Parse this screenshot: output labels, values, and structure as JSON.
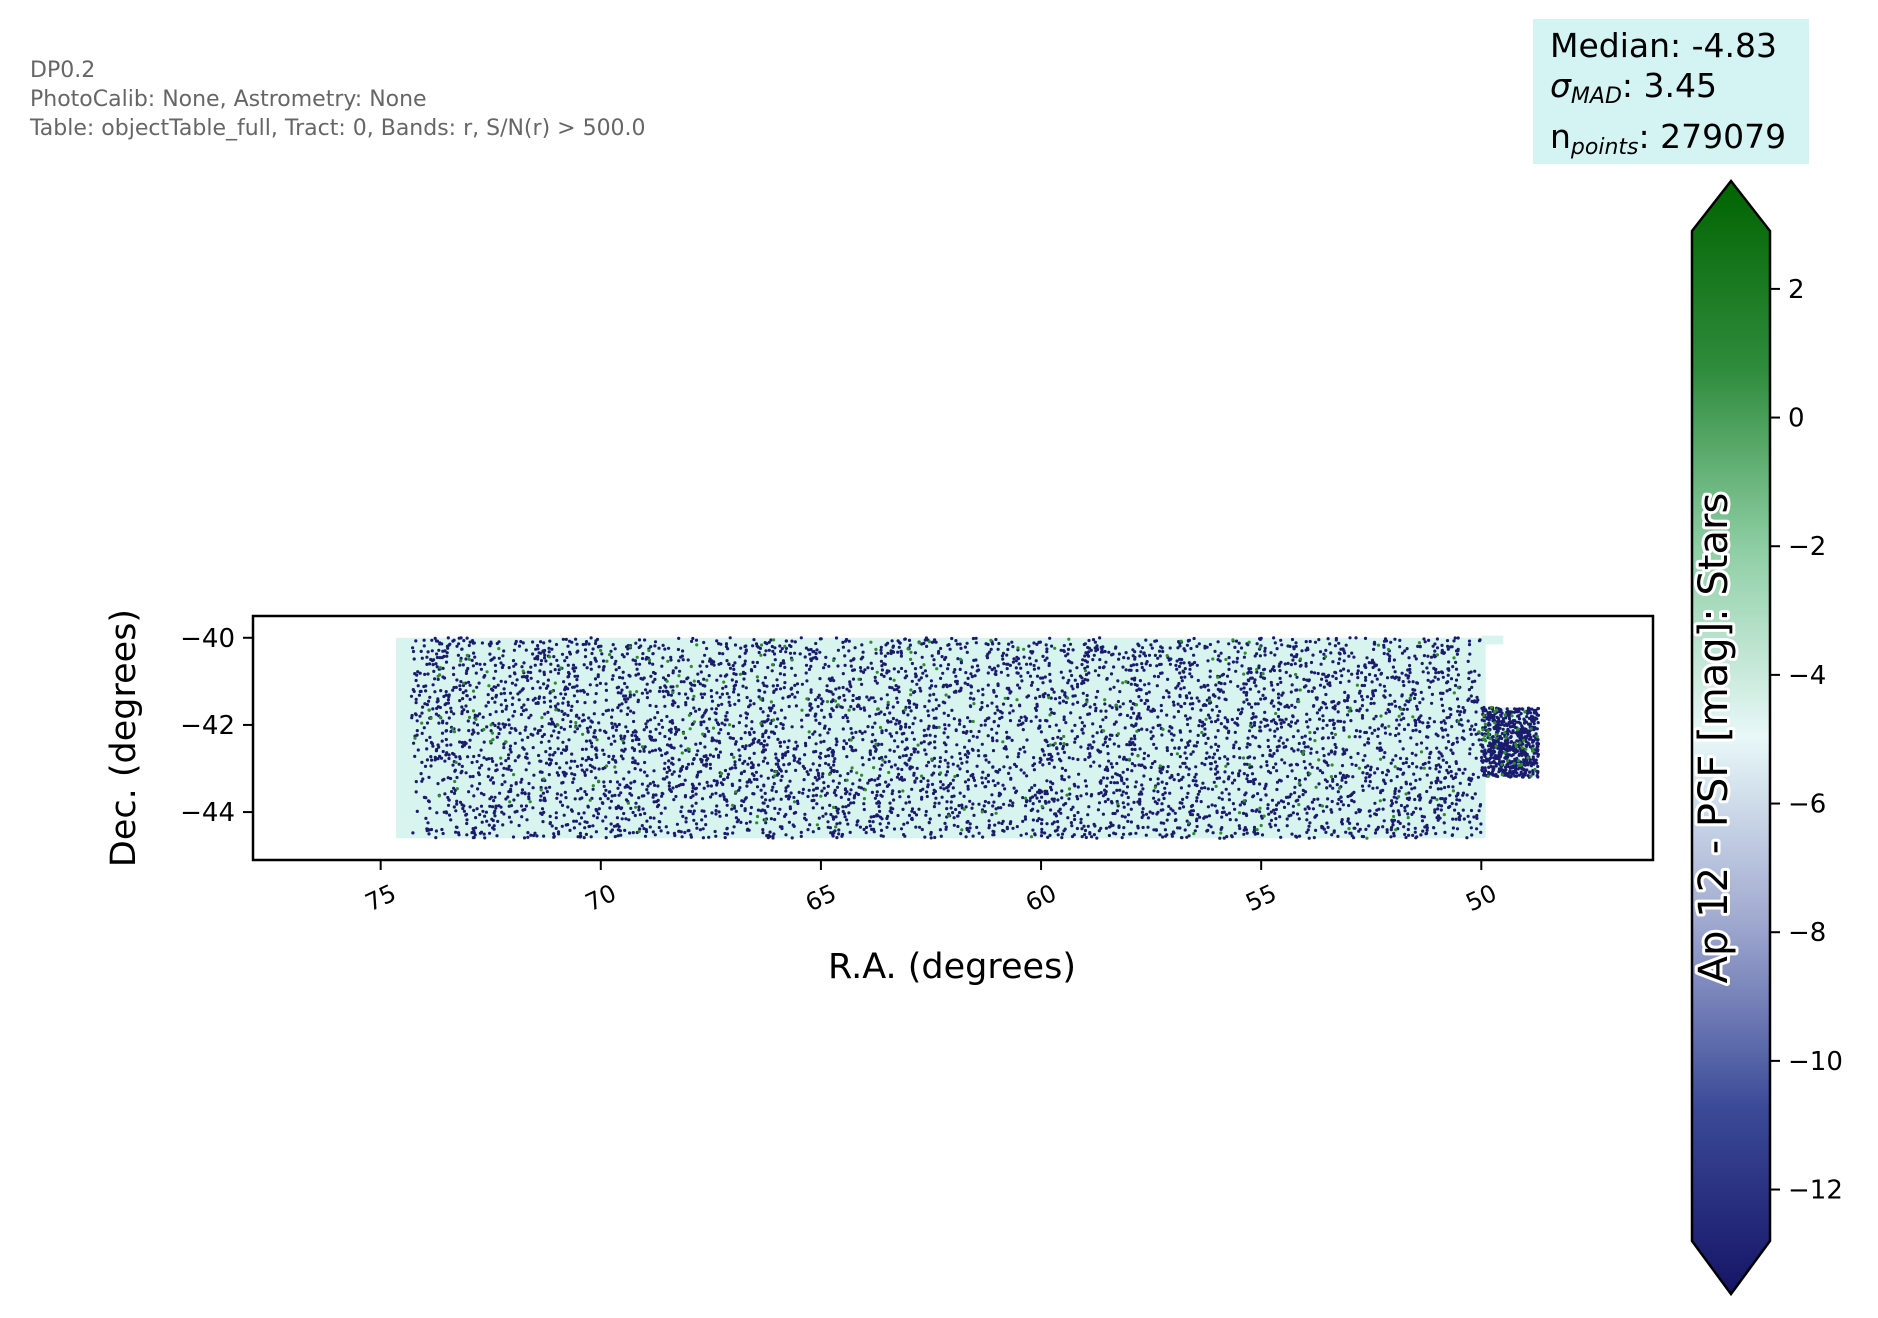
{
  "info": {
    "line1": "DP0.2",
    "line2": "PhotoCalib: None, Astrometry: None",
    "line3": "Table: objectTable_full, Tract: 0, Bands: r, S/N(r) > 500.0"
  },
  "stats": {
    "median_label": "Median: -4.83",
    "sigma_symbol": "σ",
    "sigma_sub": "MAD",
    "sigma_value": ": 3.45",
    "n_symbol": "n",
    "n_sub": "points",
    "n_value": ": 279079"
  },
  "colors": {
    "point_face": "#1b1b6e",
    "point_outlier": "#2e8b2e",
    "background_fill": "#d8f4ef",
    "colormap": [
      "#151565",
      "#3b4a98",
      "#9fa8cf",
      "#e8f8f8",
      "#8fcfa5",
      "#2e8b3b",
      "#006400"
    ]
  },
  "chart_data": {
    "type": "scatter",
    "xlabel": "R.A. (degrees)",
    "ylabel": "Dec. (degrees)",
    "xlim": [
      77.9,
      46.1
    ],
    "ylim": [
      -45.1,
      -39.5
    ],
    "xticks": [
      75,
      70,
      65,
      60,
      55,
      50
    ],
    "yticks": [
      -40,
      -42,
      -44
    ],
    "x_inverted": true,
    "point_count": 279079,
    "footprint": {
      "main_ra": [
        74.3,
        50.0
      ],
      "main_dec": [
        -44.6,
        -40.0
      ],
      "extension_ra": [
        50.0,
        48.7
      ],
      "extension_dec": [
        -43.2,
        -41.6
      ]
    },
    "colorbar": {
      "label": "Ap 12 - PSF [mag]: Stars",
      "range": [
        -12.8,
        2.9
      ],
      "ticks": [
        2,
        0,
        -2,
        -4,
        -6,
        -8,
        -10,
        -12
      ],
      "extend": "both"
    }
  }
}
